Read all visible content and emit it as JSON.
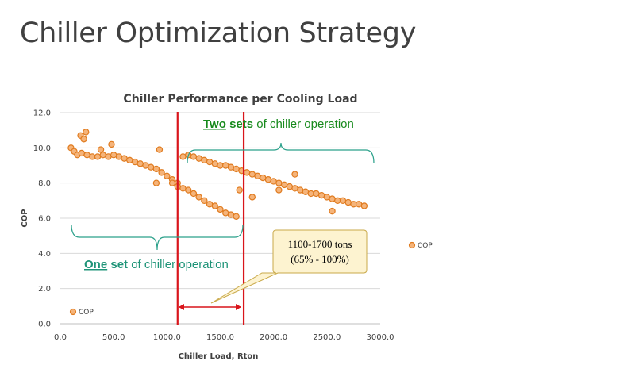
{
  "slide": {
    "title": "Chiller Optimization Strategy"
  },
  "colors": {
    "marker_fill": "#f5b47a",
    "marker_stroke": "#e07b1f",
    "red_line": "#d9151b",
    "teal_brace": "#2aa08a",
    "green_text": "#178a1c",
    "teal_text": "#1f9478",
    "callout_fill": "#fdf3d0",
    "callout_stroke": "#c9a94a"
  },
  "annotations": {
    "two_sets": {
      "word": "Two",
      "bold": "sets",
      "rest": "of chiller operation"
    },
    "one_set": {
      "word": "One",
      "bold": "set",
      "rest": "of chiller operation"
    },
    "callout": {
      "line1": "1100-1700 tons",
      "line2": "(65% - 100%)"
    }
  },
  "chart_data": {
    "type": "scatter",
    "title": "Chiller Performance per Cooling Load",
    "xlabel": "Chiller Load, Rton",
    "ylabel": "COP",
    "xlim": [
      0,
      3000
    ],
    "ylim": [
      0,
      12
    ],
    "x_ticks": [
      "0.0",
      "500.0",
      "1000.0",
      "1500.0",
      "2000.0",
      "2500.0",
      "3000.0"
    ],
    "y_ticks": [
      "0.0",
      "2.0",
      "4.0",
      "6.0",
      "8.0",
      "10.0",
      "12.0"
    ],
    "grid": true,
    "legend": [
      {
        "name": "COP",
        "position": "inside-bottom-left"
      },
      {
        "name": "COP",
        "position": "right"
      }
    ],
    "vertical_lines": [
      1100,
      1720
    ],
    "series": [
      {
        "name": "COP",
        "segments": [
          {
            "label": "main",
            "x": [
              100,
              130,
              160,
              200,
              250,
              300,
              350,
              400,
              450,
              500,
              550,
              600,
              650,
              700,
              750,
              800,
              850,
              900,
              950,
              1000,
              1050,
              1100,
              1150,
              1200,
              1250,
              1300,
              1350,
              1400,
              1450,
              1500,
              1550,
              1600,
              1650,
              1700,
              1750,
              1800,
              1850,
              1900,
              1950,
              2000,
              2050,
              2100,
              2150,
              2200,
              2250,
              2300,
              2350,
              2400,
              2450,
              2500,
              2550,
              2600,
              2650,
              2700,
              2750,
              2800,
              2850
            ],
            "y": [
              10.0,
              9.8,
              9.6,
              9.7,
              9.6,
              9.5,
              9.5,
              9.6,
              9.5,
              9.6,
              9.5,
              9.4,
              9.3,
              9.2,
              9.1,
              9.0,
              8.9,
              8.8,
              8.6,
              8.4,
              8.2,
              8.0,
              9.5,
              9.6,
              9.5,
              9.4,
              9.3,
              9.2,
              9.1,
              9.0,
              9.0,
              8.9,
              8.8,
              8.7,
              8.6,
              8.5,
              8.4,
              8.3,
              8.2,
              8.1,
              8.0,
              7.9,
              7.8,
              7.7,
              7.6,
              7.5,
              7.4,
              7.4,
              7.3,
              7.2,
              7.1,
              7.0,
              7.0,
              6.9,
              6.8,
              6.8,
              6.7
            ]
          },
          {
            "label": "lower-branch",
            "x": [
              1050,
              1100,
              1150,
              1200,
              1250,
              1300,
              1350,
              1400,
              1450,
              1500,
              1550,
              1600,
              1650
            ],
            "y": [
              8.0,
              7.8,
              7.7,
              7.6,
              7.4,
              7.2,
              7.0,
              6.8,
              6.7,
              6.5,
              6.3,
              6.2,
              6.1
            ]
          },
          {
            "label": "outliers",
            "x": [
              190,
              220,
              240,
              380,
              480,
              900,
              930,
              1680,
              1800,
              2050,
              2200,
              2550
            ],
            "y": [
              10.7,
              10.5,
              10.9,
              9.9,
              10.2,
              8.0,
              9.9,
              7.6,
              7.2,
              7.6,
              8.5,
              6.4
            ]
          }
        ]
      }
    ]
  }
}
